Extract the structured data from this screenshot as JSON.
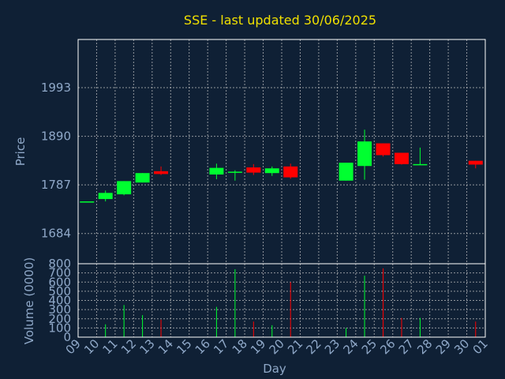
{
  "chart_data": {
    "type": "candlestick",
    "title": "SSE - last updated 30/06/2025",
    "xlabel": "Day",
    "x_ticks": [
      "09",
      "10",
      "11",
      "12",
      "13",
      "14",
      "15",
      "16",
      "17",
      "18",
      "19",
      "20",
      "21",
      "22",
      "23",
      "24",
      "25",
      "26",
      "27",
      "28",
      "29",
      "30",
      "01"
    ],
    "grid": true,
    "price_panel": {
      "ylabel": "Price",
      "y_ticks": [
        1684,
        1787,
        1890,
        1993
      ],
      "ylim": [
        1620,
        2095
      ]
    },
    "volume_panel": {
      "ylabel": "Volume (0000)",
      "y_ticks": [
        0,
        100,
        200,
        300,
        400,
        500,
        600,
        700,
        800
      ],
      "ylim": [
        0,
        800
      ]
    },
    "candles": [
      {
        "day": "09",
        "open": 1752,
        "high": 1752,
        "low": 1752,
        "close": 1752
      },
      {
        "day": "10",
        "open": 1757,
        "high": 1775,
        "low": 1752,
        "close": 1770
      },
      {
        "day": "11",
        "open": 1767,
        "high": 1795,
        "low": 1765,
        "close": 1795
      },
      {
        "day": "12",
        "open": 1792,
        "high": 1812,
        "low": 1792,
        "close": 1812
      },
      {
        "day": "13",
        "open": 1816,
        "high": 1826,
        "low": 1808,
        "close": 1810
      },
      {
        "day": "16",
        "open": 1809,
        "high": 1832,
        "low": 1799,
        "close": 1823
      },
      {
        "day": "17",
        "open": 1813,
        "high": 1818,
        "low": 1796,
        "close": 1815
      },
      {
        "day": "18",
        "open": 1824,
        "high": 1831,
        "low": 1808,
        "close": 1813
      },
      {
        "day": "19",
        "open": 1812,
        "high": 1826,
        "low": 1806,
        "close": 1822
      },
      {
        "day": "20",
        "open": 1826,
        "high": 1832,
        "low": 1800,
        "close": 1803
      },
      {
        "day": "23",
        "open": 1796,
        "high": 1834,
        "low": 1796,
        "close": 1834
      },
      {
        "day": "24",
        "open": 1827,
        "high": 1904,
        "low": 1798,
        "close": 1879
      },
      {
        "day": "25",
        "open": 1875,
        "high": 1875,
        "low": 1847,
        "close": 1850
      },
      {
        "day": "26",
        "open": 1855,
        "high": 1855,
        "low": 1830,
        "close": 1831
      },
      {
        "day": "27",
        "open": 1829,
        "high": 1866,
        "low": 1829,
        "close": 1831
      },
      {
        "day": "30",
        "open": 1838,
        "high": 1838,
        "low": 1822,
        "close": 1830
      }
    ],
    "volumes": [
      {
        "day": "09",
        "value": 0,
        "direction": "down"
      },
      {
        "day": "10",
        "value": 140,
        "direction": "up"
      },
      {
        "day": "11",
        "value": 350,
        "direction": "up"
      },
      {
        "day": "12",
        "value": 240,
        "direction": "up"
      },
      {
        "day": "13",
        "value": 190,
        "direction": "down"
      },
      {
        "day": "16",
        "value": 330,
        "direction": "up"
      },
      {
        "day": "17",
        "value": 740,
        "direction": "up"
      },
      {
        "day": "18",
        "value": 170,
        "direction": "down"
      },
      {
        "day": "19",
        "value": 130,
        "direction": "up"
      },
      {
        "day": "20",
        "value": 600,
        "direction": "down"
      },
      {
        "day": "23",
        "value": 100,
        "direction": "up"
      },
      {
        "day": "24",
        "value": 670,
        "direction": "up"
      },
      {
        "day": "25",
        "value": 750,
        "direction": "down"
      },
      {
        "day": "26",
        "value": 210,
        "direction": "down"
      },
      {
        "day": "27",
        "value": 210,
        "direction": "up"
      },
      {
        "day": "30",
        "value": 170,
        "direction": "down"
      }
    ],
    "colors": {
      "background": "#0f2035",
      "plot_border": "#ffffff",
      "grid": "#c8c8c8",
      "up": "#00ff30",
      "down": "#ff0000",
      "title": "#f0e000",
      "text": "#8fa8c8"
    }
  }
}
